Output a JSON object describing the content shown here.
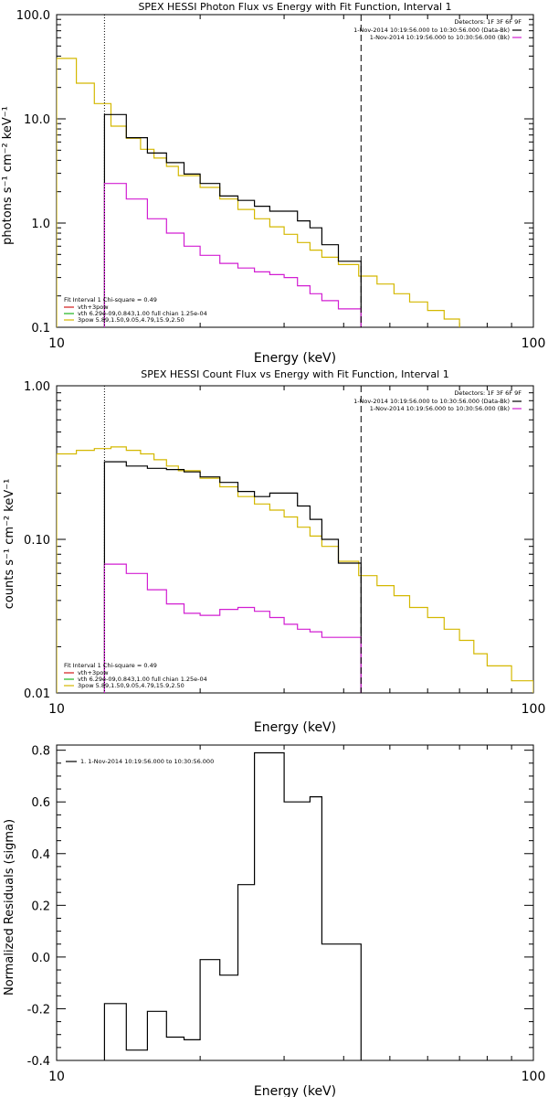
{
  "page": {
    "background": "#ffffff"
  },
  "chart_data": [
    {
      "id": "photon",
      "type": "line",
      "style": "histogram",
      "title": "SPEX HESSI Photon Flux vs Energy with Fit Function, Interval 1",
      "xlabel": "Energy (keV)",
      "ylabel": "photons s⁻¹ cm⁻² keV⁻¹",
      "xscale": "log",
      "yscale": "log",
      "xlim": [
        10,
        100
      ],
      "ylim": [
        0.1,
        100
      ],
      "xticks": [
        {
          "v": 10,
          "label": "10"
        },
        {
          "v": 100,
          "label": "100"
        }
      ],
      "yticks": [
        {
          "v": 0.1,
          "label": "0.1"
        },
        {
          "v": 1,
          "label": "1.0"
        },
        {
          "v": 10,
          "label": "10.0"
        },
        {
          "v": 100,
          "label": "100.0"
        }
      ],
      "vlines": [
        {
          "x": 12.6,
          "style": "dotted",
          "color": "#000000"
        },
        {
          "x": 43.5,
          "style": "dashed",
          "color": "#000000"
        }
      ],
      "info": {
        "label": "Detectors: 1F 3F 6F 9F",
        "lines": [
          {
            "text": "1-Nov-2014 10:19:56.000 to 10:30:56.000 (Data-Bk)",
            "color": "#000000"
          },
          {
            "text": "1-Nov-2014 10:19:56.000 to 10:30:56.000 (Bk)",
            "color": "#d21ed2"
          }
        ]
      },
      "fit_legend": {
        "header": "Fit Interval  1    Chi-square = 0.49",
        "lines": [
          {
            "text": "vth+3pow",
            "color": "#d11a1a"
          },
          {
            "text": "vth 6.29e-09,0.843,1.00  full chian 1.25e-04",
            "color": "#1fb51f"
          },
          {
            "text": "3pow 5.89,1.50,9.05,4.79,15.9,2.50",
            "color": "#d4b800"
          }
        ]
      },
      "series": [
        {
          "id": "fit",
          "color": "#d4b800",
          "edges": [
            10,
            11,
            12,
            13,
            14,
            15,
            16,
            17,
            18,
            20,
            22,
            24,
            26,
            28,
            30,
            32,
            34,
            36,
            39,
            43,
            47,
            51,
            55,
            60,
            65,
            70
          ],
          "values": [
            38,
            22,
            14,
            8.5,
            6.5,
            5.1,
            4.2,
            3.5,
            2.85,
            2.2,
            1.7,
            1.35,
            1.1,
            0.92,
            0.78,
            0.65,
            0.55,
            0.47,
            0.4,
            0.31,
            0.26,
            0.21,
            0.175,
            0.145,
            0.12
          ]
        },
        {
          "id": "data",
          "color": "#000000",
          "edges": [
            12.6,
            14,
            15.5,
            17,
            18.5,
            20,
            22,
            24,
            26,
            28,
            30,
            32,
            34,
            36,
            39,
            43.5
          ],
          "values": [
            11,
            6.6,
            4.7,
            3.8,
            2.95,
            2.4,
            1.82,
            1.65,
            1.45,
            1.3,
            1.3,
            1.05,
            0.9,
            0.62,
            0.43
          ]
        },
        {
          "id": "background",
          "color": "#d21ed2",
          "edges": [
            12.6,
            14,
            15.5,
            17,
            18.5,
            20,
            22,
            24,
            26,
            28,
            30,
            32,
            34,
            36,
            39,
            43.5
          ],
          "values": [
            2.4,
            1.7,
            1.1,
            0.8,
            0.6,
            0.49,
            0.41,
            0.37,
            0.34,
            0.32,
            0.3,
            0.25,
            0.21,
            0.18,
            0.15
          ]
        }
      ]
    },
    {
      "id": "count",
      "type": "line",
      "style": "histogram",
      "title": "SPEX HESSI Count Flux vs Energy with Fit Function, Interval 1",
      "xlabel": "Energy (keV)",
      "ylabel": "counts s⁻¹ cm⁻² keV⁻¹",
      "xscale": "log",
      "yscale": "log",
      "xlim": [
        10,
        100
      ],
      "ylim": [
        0.01,
        1
      ],
      "xticks": [
        {
          "v": 10,
          "label": "10"
        },
        {
          "v": 100,
          "label": "100"
        }
      ],
      "yticks": [
        {
          "v": 0.01,
          "label": "0.01"
        },
        {
          "v": 0.1,
          "label": "0.10"
        },
        {
          "v": 1,
          "label": "1.00"
        }
      ],
      "vlines": [
        {
          "x": 12.6,
          "style": "dotted",
          "color": "#000000"
        },
        {
          "x": 43.5,
          "style": "dashed",
          "color": "#000000"
        }
      ],
      "info": {
        "label": "Detectors: 1F 3F 6F 9F",
        "lines": [
          {
            "text": "1-Nov-2014 10:19:56.000 to 10:30:56.000 (Data-Bk)",
            "color": "#000000"
          },
          {
            "text": "1-Nov-2014 10:19:56.000 to 10:30:56.000 (Bk)",
            "color": "#d21ed2"
          }
        ]
      },
      "fit_legend": {
        "header": "Fit Interval  1    Chi-square = 0.49",
        "lines": [
          {
            "text": "vth+3pow",
            "color": "#d11a1a"
          },
          {
            "text": "vth 6.29e-09,0.843,1.00  full chian 1.25e-04",
            "color": "#1fb51f"
          },
          {
            "text": "3pow 5.89,1.50,9.05,4.79,15.9,2.50",
            "color": "#d4b800"
          }
        ]
      },
      "series": [
        {
          "id": "fit",
          "color": "#d4b800",
          "edges": [
            10,
            11,
            12,
            13,
            14,
            15,
            16,
            17,
            18,
            20,
            22,
            24,
            26,
            28,
            30,
            32,
            34,
            36,
            39,
            43,
            47,
            51,
            55,
            60,
            65,
            70,
            75,
            80,
            90,
            100
          ],
          "values": [
            0.36,
            0.38,
            0.39,
            0.4,
            0.38,
            0.36,
            0.33,
            0.3,
            0.28,
            0.25,
            0.22,
            0.19,
            0.17,
            0.155,
            0.14,
            0.12,
            0.105,
            0.09,
            0.072,
            0.058,
            0.05,
            0.043,
            0.036,
            0.031,
            0.026,
            0.022,
            0.018,
            0.015,
            0.012
          ]
        },
        {
          "id": "data",
          "color": "#000000",
          "edges": [
            12.6,
            14,
            15.5,
            17,
            18.5,
            20,
            22,
            24,
            26,
            28,
            30,
            32,
            34,
            36,
            39,
            43.5
          ],
          "values": [
            0.32,
            0.3,
            0.29,
            0.285,
            0.275,
            0.255,
            0.235,
            0.205,
            0.19,
            0.2,
            0.2,
            0.165,
            0.135,
            0.1,
            0.07
          ]
        },
        {
          "id": "background",
          "color": "#d21ed2",
          "edges": [
            12.6,
            14,
            15.5,
            17,
            18.5,
            20,
            22,
            24,
            26,
            28,
            30,
            32,
            34,
            36,
            39,
            43.5
          ],
          "values": [
            0.069,
            0.06,
            0.047,
            0.038,
            0.033,
            0.032,
            0.035,
            0.036,
            0.034,
            0.031,
            0.028,
            0.026,
            0.025,
            0.023,
            0.023
          ]
        }
      ]
    },
    {
      "id": "residuals",
      "type": "line",
      "style": "histogram",
      "title": "",
      "xlabel": "Energy (keV)",
      "ylabel": "Normalized Residuals (sigma)",
      "xscale": "log",
      "yscale": "linear",
      "xlim": [
        10,
        100
      ],
      "ylim": [
        -0.4,
        0.82
      ],
      "xticks": [
        {
          "v": 10,
          "label": "10"
        },
        {
          "v": 100,
          "label": "100"
        }
      ],
      "yticks": [
        {
          "v": -0.4,
          "label": "-0.4"
        },
        {
          "v": -0.2,
          "label": "-0.2"
        },
        {
          "v": 0,
          "label": "0.0"
        },
        {
          "v": 0.2,
          "label": "0.2"
        },
        {
          "v": 0.4,
          "label": "0.4"
        },
        {
          "v": 0.6,
          "label": "0.6"
        },
        {
          "v": 0.8,
          "label": "0.8"
        }
      ],
      "vlines": [],
      "legend": {
        "text": "1.  1-Nov-2014 10:19:56.000 to 10:30:56.000",
        "color": "#000000"
      },
      "series": [
        {
          "id": "residual",
          "color": "#000000",
          "edges": [
            12.6,
            14,
            15.5,
            17,
            18.5,
            20,
            22,
            24,
            26,
            28,
            30,
            32,
            34,
            36,
            39,
            43.5
          ],
          "values": [
            -0.18,
            -0.36,
            -0.21,
            -0.31,
            -0.32,
            -0.01,
            -0.07,
            0.28,
            0.79,
            0.79,
            0.6,
            0.6,
            0.62,
            0.05,
            0.05
          ]
        }
      ]
    }
  ]
}
